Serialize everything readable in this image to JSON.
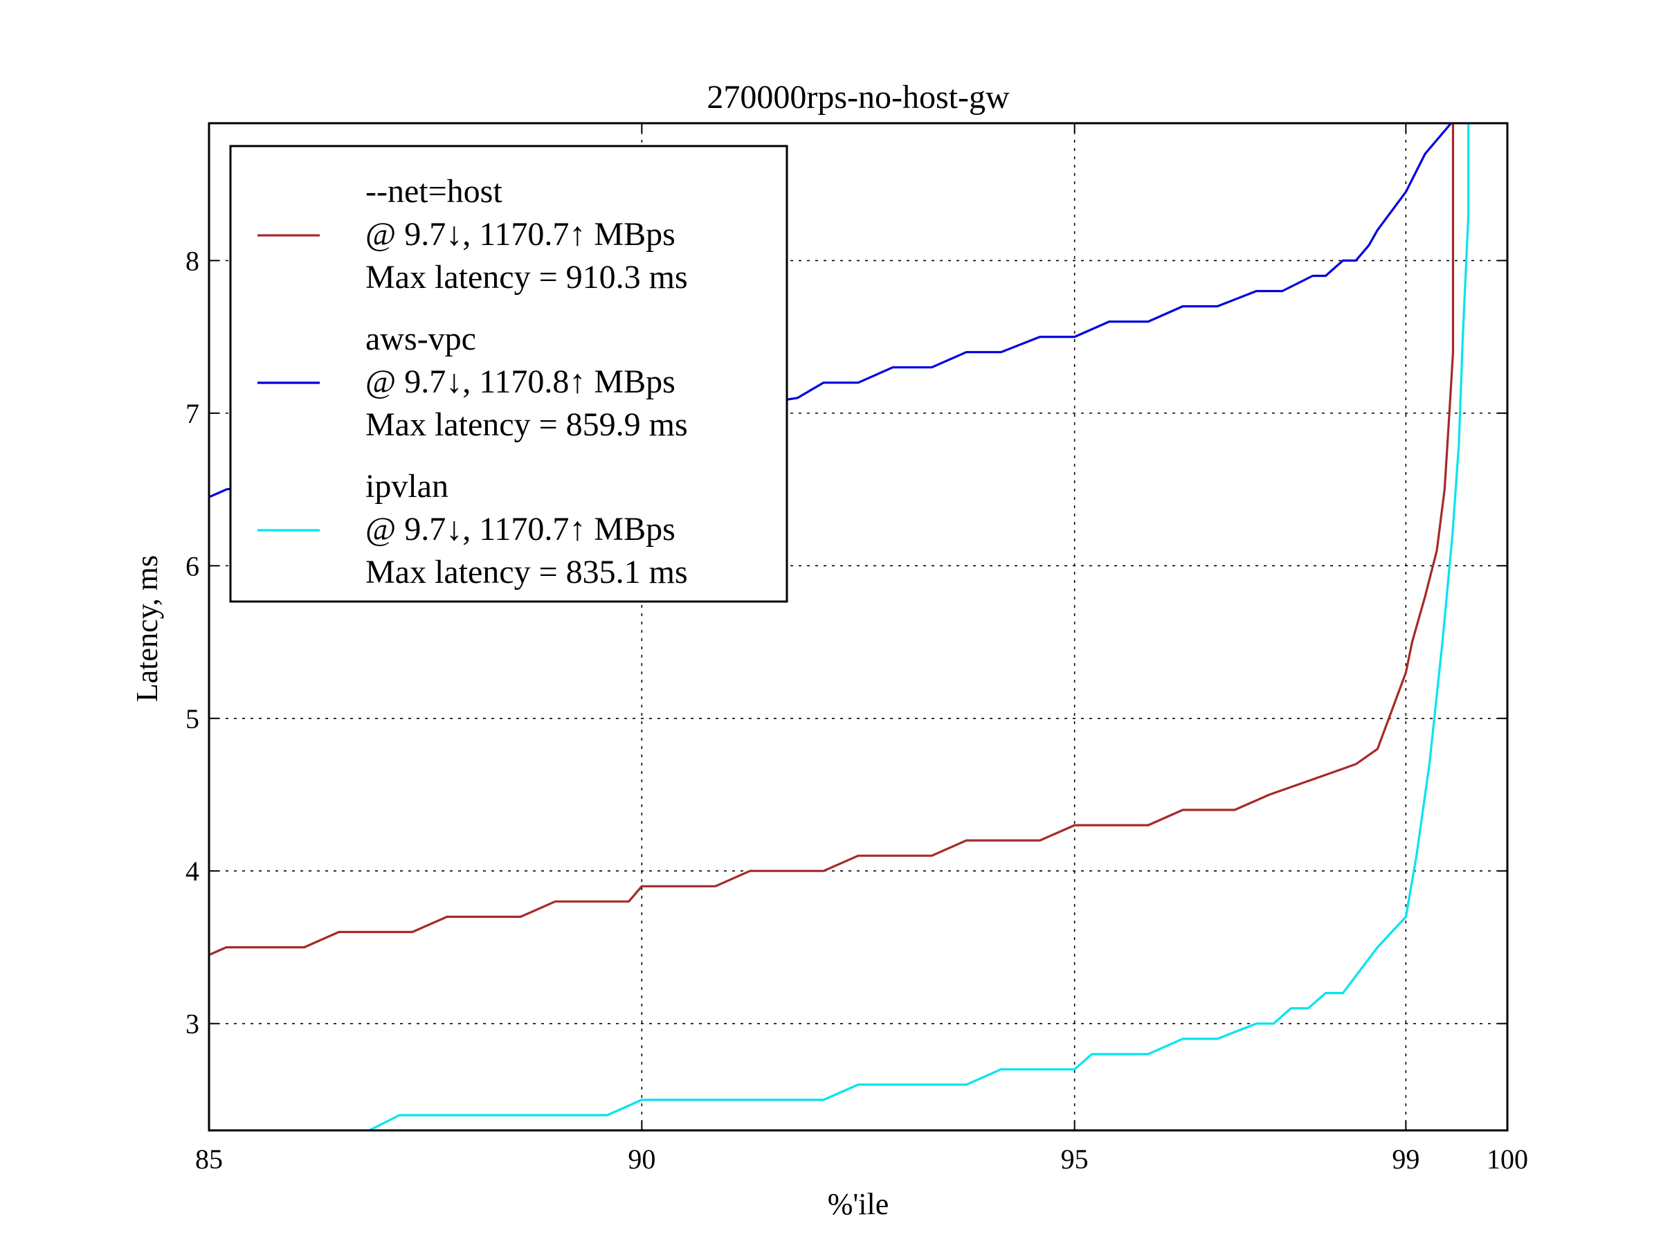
{
  "chart_data": {
    "type": "line",
    "title": "270000rps-no-host-gw",
    "xlabel": "%'ile",
    "ylabel": "Latency, ms",
    "x_ticks": [
      {
        "label": "85",
        "pos": 0
      },
      {
        "label": "90",
        "pos": 1
      },
      {
        "label": "95",
        "pos": 2
      },
      {
        "label": "99",
        "pos": 2.7655
      },
      {
        "label": "100",
        "pos": 3
      }
    ],
    "x_scale_note": "percentile axis",
    "ylim": [
      2.3,
      8.9
    ],
    "y_ticks": [
      3,
      4,
      5,
      6,
      7,
      8
    ],
    "grid": true,
    "legend_position": "top-left",
    "series": [
      {
        "name": "--net=host",
        "legend_lines": [
          "--net=host",
          "@ 9.7↓, 1170.7↑ MBps",
          "Max latency = 910.3 ms"
        ],
        "color": "#a52a2a",
        "x": [
          0,
          0.04,
          0.22,
          0.3,
          0.47,
          0.55,
          0.72,
          0.8,
          0.97,
          1.0,
          1.17,
          1.25,
          1.42,
          1.5,
          1.67,
          1.75,
          1.92,
          2.0,
          2.17,
          2.25,
          2.37,
          2.45,
          2.55,
          2.65,
          2.7,
          2.7655,
          2.78,
          2.81,
          2.837,
          2.855,
          2.866,
          2.8745,
          2.8745
        ],
        "y": [
          3.45,
          3.5,
          3.5,
          3.6,
          3.6,
          3.7,
          3.7,
          3.8,
          3.8,
          3.9,
          3.9,
          4.0,
          4.0,
          4.1,
          4.1,
          4.2,
          4.2,
          4.3,
          4.3,
          4.4,
          4.4,
          4.5,
          4.6,
          4.7,
          4.8,
          5.3,
          5.5,
          5.8,
          6.1,
          6.5,
          7.0,
          7.4,
          8.9
        ]
      },
      {
        "name": "aws-vpc",
        "legend_lines": [
          "aws-vpc",
          "@ 9.7↓, 1170.8↑ MBps",
          "Max latency = 859.9 ms"
        ],
        "color": "#0000dd",
        "x": [
          0,
          0.04,
          1.36,
          1.42,
          1.5,
          1.58,
          1.67,
          1.75,
          1.83,
          1.92,
          2.0,
          2.08,
          2.17,
          2.25,
          2.33,
          2.42,
          2.48,
          2.55,
          2.58,
          2.62,
          2.65,
          2.68,
          2.7,
          2.7655,
          2.81,
          2.87
        ],
        "y": [
          6.45,
          6.5,
          7.1,
          7.2,
          7.2,
          7.3,
          7.3,
          7.4,
          7.4,
          7.5,
          7.5,
          7.6,
          7.6,
          7.7,
          7.7,
          7.8,
          7.8,
          7.9,
          7.9,
          8.0,
          8.0,
          8.1,
          8.2,
          8.45,
          8.7,
          8.9
        ]
      },
      {
        "name": "ipvlan",
        "legend_lines": [
          "ipvlan",
          "@ 9.7↓, 1170.7↑ MBps",
          "Max latency = 835.1 ms"
        ],
        "color": "#00e5ee",
        "x": [
          0.37,
          0.44,
          0.92,
          1.0,
          1.42,
          1.5,
          1.75,
          1.83,
          2.0,
          2.04,
          2.17,
          2.25,
          2.33,
          2.42,
          2.46,
          2.5,
          2.54,
          2.58,
          2.62,
          2.7,
          2.7655,
          2.79,
          2.82,
          2.85,
          2.873,
          2.888,
          2.897,
          2.91,
          2.91
        ],
        "y": [
          2.3,
          2.4,
          2.4,
          2.5,
          2.5,
          2.6,
          2.6,
          2.7,
          2.7,
          2.8,
          2.8,
          2.9,
          2.9,
          3.0,
          3.0,
          3.1,
          3.1,
          3.2,
          3.2,
          3.5,
          3.7,
          4.1,
          4.7,
          5.5,
          6.2,
          6.8,
          7.5,
          8.3,
          8.9
        ]
      }
    ]
  }
}
